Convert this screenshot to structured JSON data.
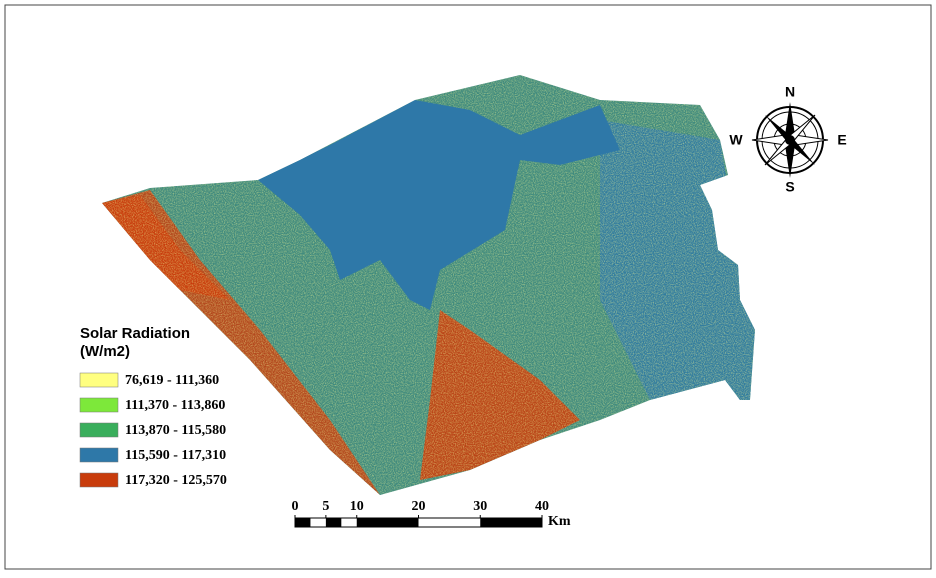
{
  "legend": {
    "title": "Solar Radiation",
    "unit": "(W/m2)",
    "items": [
      {
        "label": "76,619 - 111,360",
        "color": "#ffff80"
      },
      {
        "label": "111,370 - 113,860",
        "color": "#7de83a"
      },
      {
        "label": "113,870 - 115,580",
        "color": "#3aae5c"
      },
      {
        "label": "115,590 - 117,310",
        "color": "#2e78a8"
      },
      {
        "label": "117,320 - 125,570",
        "color": "#c83c0c"
      }
    ]
  },
  "compass": {
    "north": "N",
    "south": "S",
    "east": "E",
    "west": "W"
  },
  "scale_bar": {
    "ticks": [
      0,
      5,
      10,
      20,
      30,
      40
    ],
    "unit": "Km"
  }
}
